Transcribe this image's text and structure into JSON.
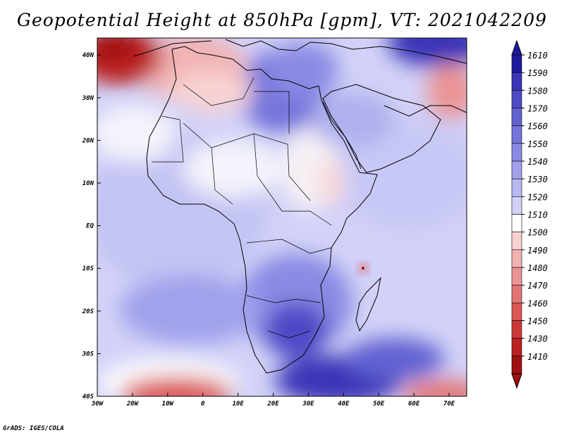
{
  "title": "Geopotential Height at 850hPa [gpm], VT: 2021042209",
  "credit": "GrADS: IGES/COLA",
  "map": {
    "lon_labels": [
      "30W",
      "20W",
      "10W",
      "0",
      "10E",
      "20E",
      "30E",
      "40E",
      "50E",
      "60E",
      "70E"
    ],
    "lat_labels": [
      "40N",
      "30N",
      "20N",
      "10N",
      "EQ",
      "10S",
      "20S",
      "30S",
      "40S"
    ],
    "lon_range": [
      -30,
      75
    ],
    "lat_range": [
      -40,
      44
    ]
  },
  "colorbar": {
    "levels": [
      "1610",
      "1590",
      "1580",
      "1570",
      "1560",
      "1550",
      "1540",
      "1530",
      "1520",
      "1510",
      "1500",
      "1490",
      "1480",
      "1470",
      "1460",
      "1450",
      "1430",
      "1410"
    ],
    "colors": [
      "#1e1a9e",
      "#3b36b8",
      "#4d4ac6",
      "#6262d2",
      "#7474dc",
      "#8a8ae4",
      "#a1a1ec",
      "#b8b8f2",
      "#d2d2f8",
      "#ffffff",
      "#f8d2d2",
      "#f2b2b2",
      "#eb9494",
      "#e47474",
      "#dc5656",
      "#cf3838",
      "#bc2020",
      "#a01010"
    ]
  },
  "colors": {
    "frame": "#000000",
    "coast": "#000000"
  }
}
